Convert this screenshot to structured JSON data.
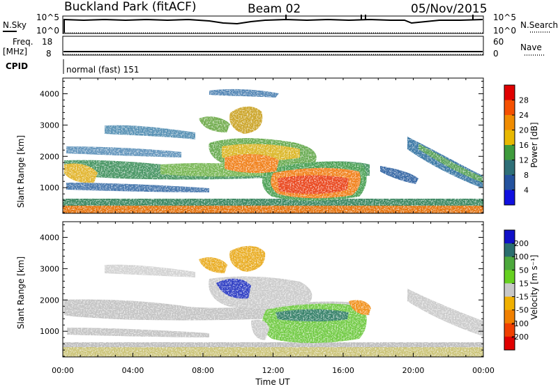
{
  "header": {
    "station": "Buckland Park (fitACF)",
    "beam": "Beam 02",
    "date": "05/Nov/2015"
  },
  "strip_panels": {
    "nsky_label": "N.Sky",
    "nsearch_label": "N.Search",
    "freq_label_1": "Freq.",
    "freq_label_2": "[MHz]",
    "nave_label": "Nave",
    "cpid_label": "CPID",
    "cpid_value": "normal (fast) 151",
    "noise_ticks": [
      "10^5",
      "10^0"
    ],
    "noise_right_ticks": [
      "10^5",
      "10^0"
    ],
    "freq_ticks": [
      "18",
      "8"
    ],
    "nave_ticks": [
      "60",
      "0"
    ]
  },
  "chart_data": [
    {
      "type": "heatmap",
      "name": "power",
      "ylabel": "Slant Range [km]",
      "ylim": [
        180,
        4500
      ],
      "y_ticks": [
        1000,
        2000,
        3000,
        4000
      ],
      "colorbar": {
        "label": "Power [dB]",
        "ticks": [
          "28",
          "24",
          "20",
          "16",
          "12",
          "8",
          "4"
        ],
        "colors": [
          "#e00000",
          "#f55000",
          "#f08c00",
          "#e8b800",
          "#3e9b3c",
          "#2e6f77",
          "#24529e",
          "#1010e0"
        ]
      }
    },
    {
      "type": "heatmap",
      "name": "velocity",
      "ylabel": "Slant Range [km]",
      "xlabel": "Time UT",
      "ylim": [
        180,
        4500
      ],
      "y_ticks": [
        1000,
        2000,
        3000,
        4000
      ],
      "x_ticks": [
        "00:00",
        "04:00",
        "08:00",
        "12:00",
        "16:00",
        "20:00",
        "00:00"
      ],
      "colorbar": {
        "label": "Velocity [m s⁻¹]",
        "ticks": [
          "200",
          "100",
          "50",
          "15",
          "-15",
          "-50",
          "-100",
          "-200"
        ],
        "colors": [
          "#1010c8",
          "#2a6e6e",
          "#4ca83c",
          "#66d020",
          "#c8c8c8",
          "#f0b000",
          "#f08000",
          "#f04000",
          "#e00000"
        ]
      }
    }
  ]
}
